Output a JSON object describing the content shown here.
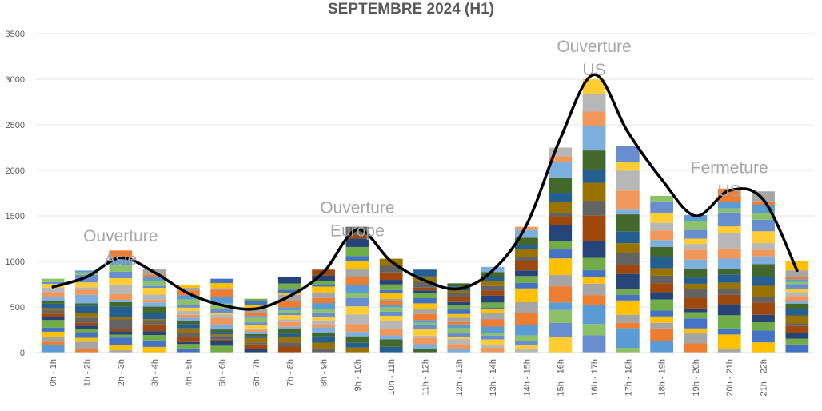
{
  "chart_data": {
    "type": "bar",
    "stacked": true,
    "title": "SEPTEMBRE 2024 (H1)",
    "categories": [
      "0h - 1h",
      "1h - 2h",
      "2h - 3h",
      "3h - 4h",
      "4h - 5h",
      "5h - 6h",
      "6h - 7h",
      "7h - 8h",
      "8h - 9h",
      "9h - 10h",
      "10h - 11h",
      "11h - 12h",
      "12h - 13h",
      "13h - 14h",
      "14h - 15h",
      "15h - 16h",
      "16h - 17h",
      "17h - 18h",
      "18h - 19h",
      "19h - 20h",
      "20h - 21h",
      "21h - 22h",
      ""
    ],
    "totals": [
      810,
      900,
      1120,
      920,
      740,
      810,
      590,
      830,
      910,
      1380,
      1030,
      910,
      760,
      940,
      1380,
      2250,
      3000,
      2270,
      1720,
      1510,
      1800,
      1770,
      1000
    ],
    "trend_line": [
      720,
      830,
      1040,
      880,
      650,
      520,
      480,
      620,
      880,
      1350,
      1000,
      790,
      700,
      900,
      1400,
      2350,
      3050,
      2420,
      1900,
      1500,
      1780,
      1680,
      900
    ],
    "ylim": [
      0,
      3500
    ],
    "yticks": [
      0,
      500,
      1000,
      1500,
      2000,
      2500,
      3000,
      3500
    ],
    "grid": true,
    "legend": "none",
    "segment_colors": [
      "#5b9bd5",
      "#ed7d31",
      "#a5a5a5",
      "#ffc000",
      "#4472c4",
      "#70ad47",
      "#264478",
      "#9e480e",
      "#636363",
      "#997300",
      "#255e91",
      "#43682b",
      "#7cafdd",
      "#f1975a",
      "#b7b7b7",
      "#ffcd33",
      "#698ed0",
      "#8cc168"
    ],
    "line_color": "#000000",
    "annotations": [
      {
        "lines": [
          "Ouverture",
          "Asie"
        ],
        "category_index": 2,
        "value": 1220
      },
      {
        "lines": [
          "Ouverture",
          "Europe"
        ],
        "category_index": 9,
        "value": 1530
      },
      {
        "lines": [
          "Ouverture",
          "US"
        ],
        "category_index": 16,
        "value": 3300
      },
      {
        "lines": [
          "Fermeture",
          "US"
        ],
        "category_index": 20,
        "value": 1970
      }
    ]
  }
}
